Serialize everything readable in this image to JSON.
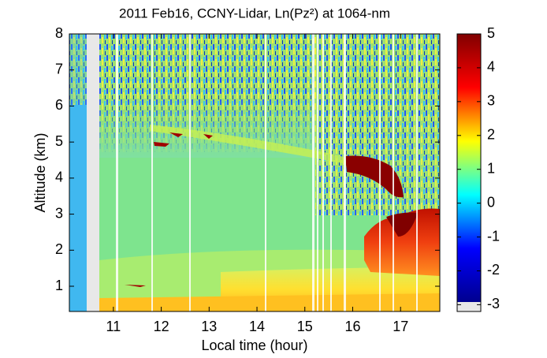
{
  "chart_data": {
    "type": "heatmap",
    "title": "2011 Feb16, CCNY-Lidar, Ln(Pz²) at 1064-nm",
    "x_label": "Local time (hour)",
    "y_label": "Altitude (km)",
    "xlim": [
      10.08,
      17.82
    ],
    "xticks": [
      11,
      12,
      13,
      14,
      15,
      16,
      17
    ],
    "ylim": [
      0.3,
      8
    ],
    "yticks": [
      1,
      2,
      3,
      4,
      5,
      6,
      7,
      8
    ],
    "clim": [
      -3.2,
      5
    ],
    "cticks": [
      -3,
      -2,
      -1,
      0,
      1,
      2,
      3,
      4,
      5
    ],
    "colormap": [
      "#00008f",
      "#0000ff",
      "#00ffff",
      "#ffff00",
      "#ff0000",
      "#800000"
    ]
  }
}
